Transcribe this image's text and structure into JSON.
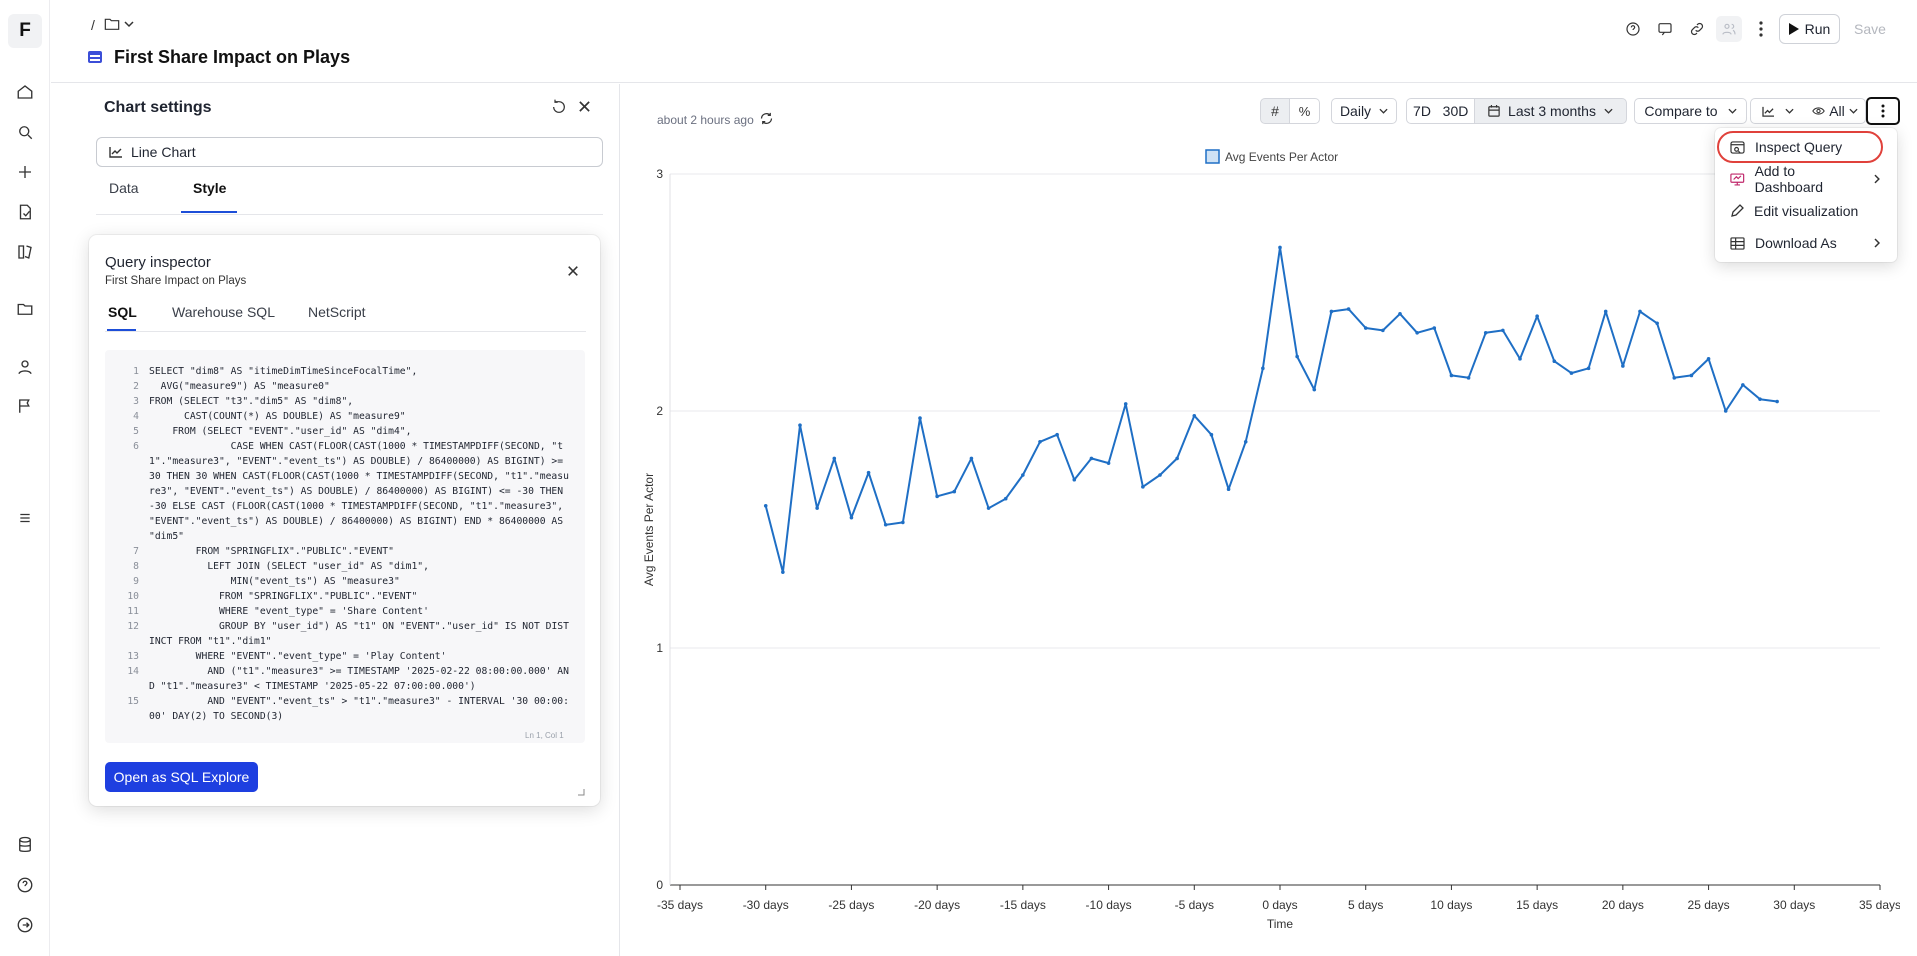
{
  "rail": {
    "logo": "F",
    "icons": [
      "home-icon",
      "search-icon",
      "plus-icon",
      "new-doc-icon",
      "explore-icon",
      "folder-icon",
      "user-icon",
      "flag-icon",
      "database-icon",
      "help-icon",
      "logout-icon"
    ]
  },
  "header": {
    "breadcrumb_sep": "/",
    "title": "First Share Impact on Plays",
    "run_label": "Run",
    "save_label": "Save"
  },
  "chart_settings": {
    "title": "Chart settings",
    "chart_type": "Line Chart",
    "tabs": [
      "Data",
      "Style"
    ],
    "active_tab": "Style"
  },
  "query_inspector": {
    "title": "Query inspector",
    "subtitle": "First Share Impact on Plays",
    "tabs": [
      "SQL",
      "Warehouse SQL",
      "NetScript"
    ],
    "active_tab": "SQL",
    "cursor_position": "Ln 1, Col 1",
    "open_button": "Open as SQL Explore",
    "code": [
      {
        "n": "1",
        "t": "SELECT \"dim8\" AS \"itimeDimTimeSinceFocalTime\","
      },
      {
        "n": "2",
        "t": "  AVG(\"measure9\") AS \"measure0\""
      },
      {
        "n": "3",
        "t": "FROM (SELECT \"t3\".\"dim5\" AS \"dim8\","
      },
      {
        "n": "4",
        "t": "      CAST(COUNT(*) AS DOUBLE) AS \"measure9\""
      },
      {
        "n": "5",
        "t": "    FROM (SELECT \"EVENT\".\"user_id\" AS \"dim4\","
      },
      {
        "n": "6",
        "t": "              CASE WHEN CAST(FLOOR(CAST(1000 * TIMESTAMPDIFF(SECOND, \"t1\".\"measure3\", \"EVENT\".\"event_ts\") AS DOUBLE) / 86400000) AS BIGINT) >= 30 THEN 30 WHEN CAST(FLOOR(CAST(1000 * TIMESTAMPDIFF(SECOND, \"t1\".\"measure3\", \"EVENT\".\"event_ts\") AS DOUBLE) / 86400000) AS BIGINT) <= -30 THEN -30 ELSE CAST (FLOOR(CAST(1000 * TIMESTAMPDIFF(SECOND, \"t1\".\"measure3\", \"EVENT\".\"event_ts\") AS DOUBLE) / 86400000) AS BIGINT) END * 86400000 AS \"dim5\""
      },
      {
        "n": "7",
        "t": "        FROM \"SPRINGFLIX\".\"PUBLIC\".\"EVENT\""
      },
      {
        "n": "8",
        "t": "          LEFT JOIN (SELECT \"user_id\" AS \"dim1\","
      },
      {
        "n": "9",
        "t": "              MIN(\"event_ts\") AS \"measure3\""
      },
      {
        "n": "10",
        "t": "            FROM \"SPRINGFLIX\".\"PUBLIC\".\"EVENT\""
      },
      {
        "n": "11",
        "t": "            WHERE \"event_type\" = 'Share Content'"
      },
      {
        "n": "12",
        "t": "            GROUP BY \"user_id\") AS \"t1\" ON \"EVENT\".\"user_id\" IS NOT DISTINCT FROM \"t1\".\"dim1\""
      },
      {
        "n": "13",
        "t": "        WHERE \"EVENT\".\"event_type\" = 'Play Content'"
      },
      {
        "n": "14",
        "t": "          AND (\"t1\".\"measure3\" >= TIMESTAMP '2025-02-22 08:00:00.000' AND \"t1\".\"measure3\" < TIMESTAMP '2025-05-22 07:00:00.000')"
      },
      {
        "n": "15",
        "t": "          AND \"EVENT\".\"event_ts\" > \"t1\".\"measure3\" - INTERVAL '30 00:00:00' DAY(2) TO SECOND(3)"
      }
    ]
  },
  "toolbar": {
    "updated": "about 2 hours ago",
    "granularity": "Daily",
    "range_7d": "7D",
    "range_30d": "30D",
    "date_range": "Last 3 months",
    "compare": "Compare to",
    "filter_all": "All"
  },
  "menu": {
    "items": [
      "Inspect Query",
      "Add to Dashboard",
      "Edit visualization",
      "Download As"
    ]
  },
  "colors": {
    "accent": "#1e3fe0",
    "line": "#1f6fc5",
    "highlight": "#e0413b"
  },
  "chart_data": {
    "type": "line",
    "xlabel": "Time",
    "ylabel": "Avg Events Per Actor",
    "ylim": [
      0,
      3
    ],
    "xlim": [
      -35,
      35
    ],
    "yticks": [
      "0",
      "1",
      "2",
      "3"
    ],
    "xticks": [
      "-35 days",
      "-30 days",
      "-25 days",
      "-20 days",
      "-15 days",
      "-10 days",
      "-5 days",
      "0 days",
      "5 days",
      "10 days",
      "15 days",
      "20 days",
      "25 days",
      "30 days",
      "35 days"
    ],
    "legend_position": "top",
    "series": [
      {
        "name": "Avg Events Per Actor",
        "x": [
          -30,
          -29,
          -28,
          -27,
          -26,
          -25,
          -24,
          -23,
          -22,
          -21,
          -20,
          -19,
          -18,
          -17,
          -16,
          -15,
          -14,
          -13,
          -12,
          -11,
          -10,
          -9,
          -8,
          -7,
          -6,
          -5,
          -4,
          -3,
          -2,
          -1,
          0,
          1,
          2,
          3,
          4,
          5,
          6,
          7,
          8,
          9,
          10,
          11,
          12,
          13,
          14,
          15,
          16,
          17,
          18,
          19,
          20,
          21,
          22,
          23,
          24,
          25,
          26,
          27,
          28,
          29
        ],
        "values": [
          1.6,
          1.32,
          1.94,
          1.59,
          1.8,
          1.55,
          1.74,
          1.52,
          1.53,
          1.97,
          1.64,
          1.66,
          1.8,
          1.59,
          1.63,
          1.73,
          1.87,
          1.9,
          1.71,
          1.8,
          1.78,
          2.03,
          1.68,
          1.73,
          1.8,
          1.98,
          1.9,
          1.67,
          1.87,
          2.18,
          2.69,
          2.23,
          2.09,
          2.42,
          2.43,
          2.35,
          2.34,
          2.41,
          2.33,
          2.35,
          2.15,
          2.14,
          2.33,
          2.34,
          2.22,
          2.4,
          2.21,
          2.16,
          2.18,
          2.42,
          2.19,
          2.42,
          2.37,
          2.14,
          2.15,
          2.22,
          2.0,
          2.11,
          2.05,
          2.04
        ]
      }
    ]
  }
}
